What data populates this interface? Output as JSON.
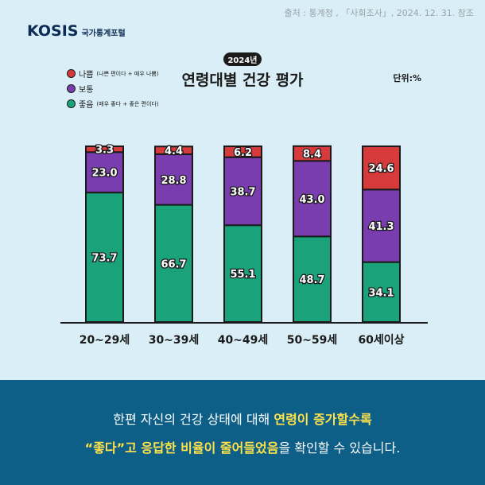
{
  "source_text": "출처 : 통계청 , 「사회조사」, 2024. 12. 31. 참조",
  "logo": {
    "brand": "KOSIS",
    "sub": "국가통계포털"
  },
  "year_badge": "2024년",
  "unit_label": "단위:%",
  "colors": {
    "bad": "#d63a3a",
    "normal": "#7a3db0",
    "good": "#1aa37a",
    "background": "#d9eef6",
    "banner": "#0d5f87",
    "highlight": "#ffe24a"
  },
  "legend": [
    {
      "name": "나쁨",
      "note": "(나쁜 편이다 + 매우 나쁨)",
      "color": "#d63a3a"
    },
    {
      "name": "보통",
      "note": "",
      "color": "#7a3db0"
    },
    {
      "name": "좋음",
      "note": "(매우 좋다 + 좋은 편이다)",
      "color": "#1aa37a"
    }
  ],
  "chart_data": {
    "type": "bar",
    "stacked": true,
    "title": "연령대별 건강 평가",
    "categories": [
      "20~29세",
      "30~39세",
      "40~49세",
      "50~59세",
      "60세이상"
    ],
    "series": [
      {
        "name": "좋음",
        "values": [
          73.7,
          66.7,
          55.1,
          48.7,
          34.1
        ]
      },
      {
        "name": "보통",
        "values": [
          23.0,
          28.8,
          38.7,
          43.0,
          41.3
        ]
      },
      {
        "name": "나쁨",
        "values": [
          3.3,
          4.4,
          6.2,
          8.4,
          24.6
        ]
      }
    ],
    "ylim": [
      0,
      100
    ],
    "grid": false
  },
  "banner": {
    "line1": [
      "한편 자신의 건강 상태에 대해 ",
      "연령이 증가할수록"
    ],
    "line2": [
      "“좋다”고 응답한 비율이 줄어들었음",
      "을 확인할 수 있습니다."
    ]
  }
}
